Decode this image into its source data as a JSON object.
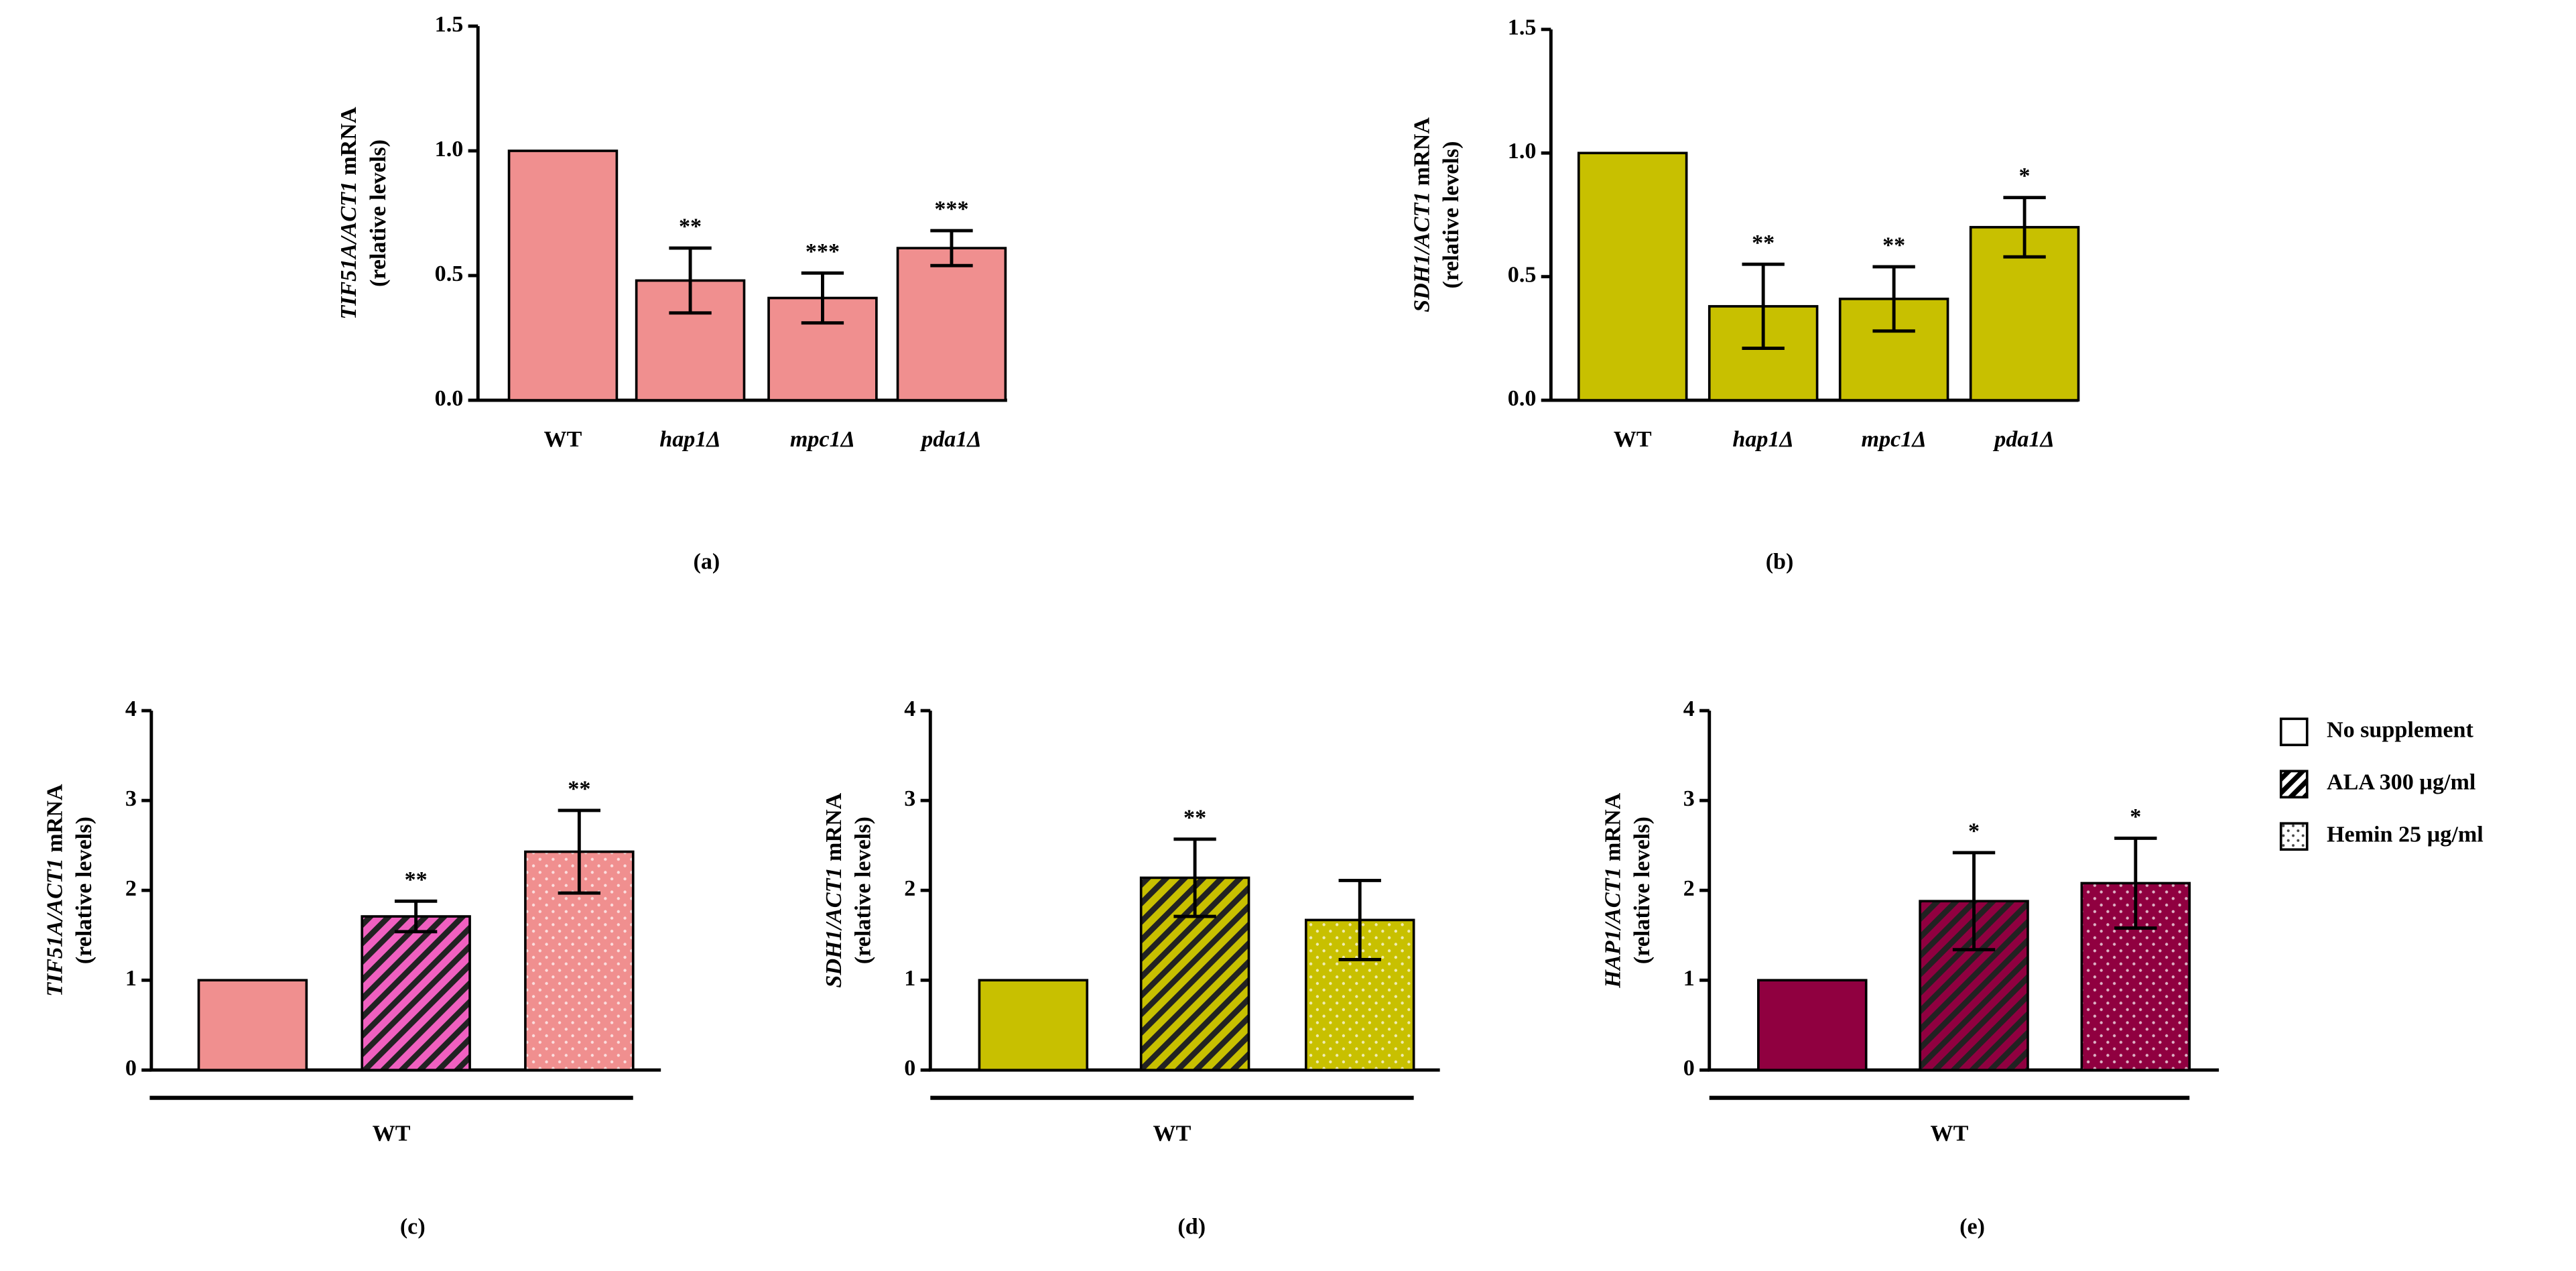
{
  "chart_data": [
    {
      "type": "bar",
      "panel": "(a)",
      "ylabel_gene": "TIF51A/ACT1",
      "ylabel_unit": " mRNA",
      "ylabel_line2": "(relative levels)",
      "categories": [
        "WT",
        "hap1Δ",
        "mpc1Δ",
        "pda1Δ"
      ],
      "category_italic": [
        false,
        true,
        true,
        true
      ],
      "values": [
        1.0,
        0.48,
        0.41,
        0.61
      ],
      "errors": [
        null,
        0.13,
        0.1,
        0.07
      ],
      "significance": [
        null,
        "**",
        "***",
        "***"
      ],
      "color": "#f08f8f",
      "ylim": [
        0,
        1.5
      ],
      "yticks": [
        {
          "value": 0,
          "label": "0.0"
        },
        {
          "value": 0.5,
          "label": "0.5"
        },
        {
          "value": 1,
          "label": "1.0"
        },
        {
          "value": 1.5,
          "label": "1.5"
        }
      ]
    },
    {
      "type": "bar",
      "panel": "(b)",
      "ylabel_gene": "SDH1/ACT1",
      "ylabel_unit": " mRNA",
      "ylabel_line2": "(relative levels)",
      "categories": [
        "WT",
        "hap1Δ",
        "mpc1Δ",
        "pda1Δ"
      ],
      "category_italic": [
        false,
        true,
        true,
        true
      ],
      "values": [
        1.0,
        0.38,
        0.41,
        0.7
      ],
      "errors": [
        null,
        0.17,
        0.13,
        0.12
      ],
      "significance": [
        null,
        "**",
        "**",
        "*"
      ],
      "color": "#c8c000",
      "ylim": [
        0,
        1.5
      ],
      "yticks": [
        {
          "value": 0,
          "label": "0.0"
        },
        {
          "value": 0.5,
          "label": "0.5"
        },
        {
          "value": 1,
          "label": "1.0"
        },
        {
          "value": 1.5,
          "label": "1.5"
        }
      ]
    },
    {
      "type": "bar",
      "panel": "(c)",
      "ylabel_gene": "TIF51A/ACT1",
      "ylabel_unit": " mRNA",
      "ylabel_line2": "(relative levels)",
      "group_label": "WT",
      "values": [
        1,
        1.71,
        2.43
      ],
      "errors": [
        null,
        0.17,
        0.46
      ],
      "significance": [
        null,
        "**",
        "**"
      ],
      "color": "#f08f8f",
      "ylim": [
        0,
        4
      ],
      "yticks": [
        0,
        1,
        2,
        3,
        4
      ]
    },
    {
      "type": "bar",
      "panel": "(d)",
      "ylabel_gene": "SDH1/ACT1",
      "ylabel_unit": " mRNA",
      "ylabel_line2": "(relative levels)",
      "group_label": "WT",
      "values": [
        1,
        2.14,
        1.67
      ],
      "errors": [
        null,
        0.43,
        0.44
      ],
      "significance": [
        null,
        "**",
        null
      ],
      "color": "#c8c000",
      "ylim": [
        0,
        4
      ],
      "yticks": [
        0,
        1,
        2,
        3,
        4
      ]
    },
    {
      "type": "bar",
      "panel": "(e)",
      "ylabel_gene": "HAP1/ACT1",
      "ylabel_unit": " mRNA",
      "ylabel_line2": "(relative levels)",
      "group_label": "WT",
      "values": [
        1,
        1.88,
        2.08
      ],
      "errors": [
        null,
        0.54,
        0.5
      ],
      "significance": [
        null,
        "*",
        "*"
      ],
      "color": "#900040",
      "ylim": [
        0,
        4
      ],
      "yticks": [
        0,
        1,
        2,
        3,
        4
      ]
    }
  ],
  "legend": {
    "entries": [
      "No supplement",
      "ALA 300 µg/ml",
      "Hemin 25 µg/ml"
    ],
    "patterns": [
      "solid",
      "hatch",
      "dots"
    ]
  }
}
